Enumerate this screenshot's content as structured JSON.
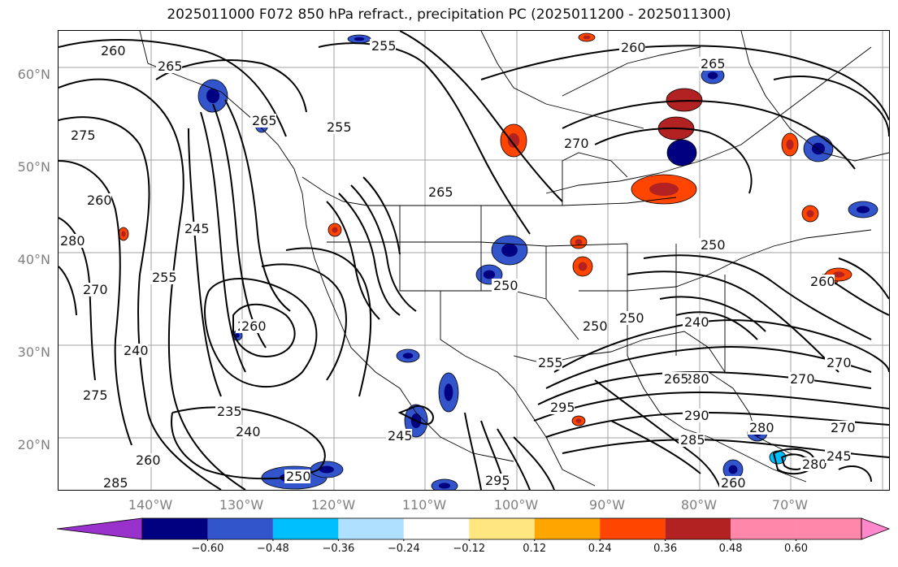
{
  "title": "2025011000 F072 850 hPa refract., precipitation PC (2025011200 - 2025011300)",
  "map": {
    "latitude_labels": [
      "60°N",
      "50°N",
      "40°N",
      "30°N",
      "20°N"
    ],
    "longitude_labels": [
      "140°W",
      "130°W",
      "120°W",
      "110°W",
      "100°W",
      "90°W",
      "80°W",
      "70°W"
    ],
    "contour_labels": [
      "260",
      "265",
      "255",
      "260",
      "265",
      "270",
      "265",
      "255",
      "265",
      "275",
      "260",
      "280",
      "245",
      "255",
      "270",
      "240",
      "235",
      "240",
      "245",
      "250",
      "280",
      "270",
      "275",
      "260",
      "285",
      "250",
      "245",
      "255",
      "260",
      "265",
      "270",
      "280",
      "290",
      "295",
      "285",
      "270",
      "260",
      "240",
      "250",
      "280",
      "245",
      "295",
      "250",
      "260",
      "250"
    ],
    "colors": {
      "contour": "#000000",
      "grid": "#a0a0a0",
      "border": "#000000"
    }
  },
  "colorbar": {
    "tick_labels": [
      "−0.60",
      "−0.48",
      "−0.36",
      "−0.24",
      "−0.12",
      "0.12",
      "0.24",
      "0.36",
      "0.48",
      "0.60"
    ],
    "colors": [
      "#9932cc",
      "#6a1fb0",
      "#000080",
      "#3355cc",
      "#00bfff",
      "#b0e0ff",
      "#ffffff",
      "#ffe680",
      "#ffa500",
      "#ff4500",
      "#b22222",
      "#ff88aa",
      "#ff88cc"
    ]
  }
}
